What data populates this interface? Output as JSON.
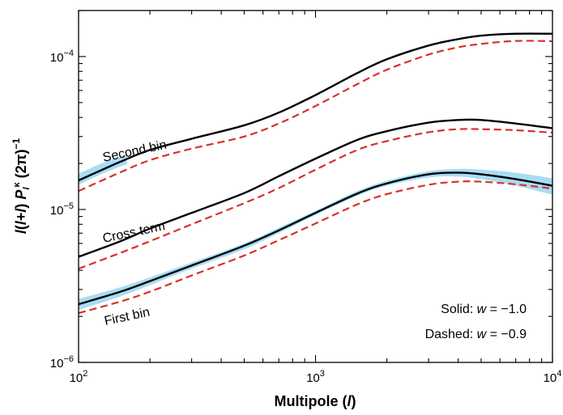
{
  "chart_data": {
    "type": "line",
    "xscale": "log",
    "yscale": "log",
    "xlim": [
      100,
      10000
    ],
    "ylim": [
      1e-06,
      0.0002
    ],
    "xlabel": "Multipole (l)",
    "ylabel": "l(l+l) P_l^κ (2π)^−1",
    "x_ticks": [
      {
        "value": 100,
        "base": "10",
        "exp": "2"
      },
      {
        "value": 1000,
        "base": "10",
        "exp": "3"
      },
      {
        "value": 10000,
        "base": "10",
        "exp": "4"
      }
    ],
    "y_ticks": [
      {
        "value": 1e-06,
        "base": "10",
        "exp": "−6"
      },
      {
        "value": 1e-05,
        "base": "10",
        "exp": "−5"
      },
      {
        "value": 0.0001,
        "base": "10",
        "exp": "−4"
      }
    ],
    "x": [
      100,
      150,
      200,
      300,
      500,
      700,
      1000,
      1500,
      2000,
      3000,
      4000,
      5000,
      7000,
      10000
    ],
    "series": [
      {
        "group": "Second bin",
        "style": "solid",
        "color": "#000000",
        "values": [
          1.55e-05,
          2.05e-05,
          2.45e-05,
          2.9e-05,
          3.55e-05,
          4.3e-05,
          5.6e-05,
          7.8e-05,
          9.6e-05,
          0.000118,
          0.00013,
          0.000137,
          0.000141,
          0.000141
        ]
      },
      {
        "group": "Second bin",
        "style": "dashed",
        "color": "#d8322a",
        "values": [
          1.32e-05,
          1.75e-05,
          2.1e-05,
          2.5e-05,
          3e-05,
          3.65e-05,
          4.75e-05,
          6.6e-05,
          8.2e-05,
          0.000103,
          0.000115,
          0.000121,
          0.0001265,
          0.000126
        ]
      },
      {
        "group": "Cross term",
        "style": "solid",
        "color": "#000000",
        "values": [
          4.9e-06,
          6.2e-06,
          7.5e-06,
          9.5e-06,
          1.28e-05,
          1.65e-05,
          2.15e-05,
          2.85e-05,
          3.25e-05,
          3.7e-05,
          3.85e-05,
          3.85e-05,
          3.65e-05,
          3.4e-05
        ]
      },
      {
        "group": "Cross term",
        "style": "dashed",
        "color": "#d8322a",
        "values": [
          4.1e-06,
          5.2e-06,
          6.2e-06,
          8e-06,
          1.1e-05,
          1.38e-05,
          1.82e-05,
          2.45e-05,
          2.8e-05,
          3.2e-05,
          3.35e-05,
          3.35e-05,
          3.3e-05,
          3.18e-05
        ]
      },
      {
        "group": "First bin",
        "style": "solid",
        "color": "#000000",
        "values": [
          2.4e-06,
          2.9e-06,
          3.4e-06,
          4.3e-06,
          5.8e-06,
          7.3e-06,
          9.5e-06,
          1.27e-05,
          1.48e-05,
          1.7e-05,
          1.74e-05,
          1.7e-05,
          1.58e-05,
          1.43e-05
        ]
      },
      {
        "group": "First bin",
        "style": "dashed",
        "color": "#d8322a",
        "values": [
          2.1e-06,
          2.5e-06,
          2.9e-06,
          3.7e-06,
          5e-06,
          6.3e-06,
          8.1e-06,
          1.08e-05,
          1.26e-05,
          1.45e-05,
          1.52e-05,
          1.52e-05,
          1.46e-05,
          1.37e-05
        ]
      }
    ],
    "bands": [
      {
        "group": "Second bin",
        "color": "#a9dcf3",
        "x": [
          100,
          130,
          160
        ],
        "lower": [
          1.45e-05,
          1.75e-05,
          1.98e-05
        ],
        "upper": [
          1.72e-05,
          2.05e-05,
          2.28e-05
        ]
      },
      {
        "group": "First bin",
        "color": "#a9dcf3",
        "x": [
          100,
          150,
          200,
          300,
          500,
          700,
          1000,
          1500,
          2000,
          3000,
          4000,
          5000,
          7000,
          10000
        ],
        "lower": [
          2.2e-06,
          2.7e-06,
          3.2e-06,
          4.1e-06,
          5.5e-06,
          7e-06,
          9.2e-06,
          1.23e-05,
          1.43e-05,
          1.62e-05,
          1.64e-05,
          1.58e-05,
          1.43e-05,
          1.25e-05
        ],
        "upper": [
          2.6e-06,
          3.1e-06,
          3.6e-06,
          4.5e-06,
          6e-06,
          7.6e-06,
          9.8e-06,
          1.32e-05,
          1.54e-05,
          1.78e-05,
          1.84e-05,
          1.82e-05,
          1.74e-05,
          1.6e-05
        ]
      }
    ],
    "curve_labels": [
      "Second bin",
      "Cross term",
      "First bin"
    ],
    "legend": [
      {
        "label": "Solid: ",
        "var": "w",
        "eq": " = −1.0"
      },
      {
        "label": "Dashed: ",
        "var": "w",
        "eq": " = −0.9"
      }
    ]
  }
}
